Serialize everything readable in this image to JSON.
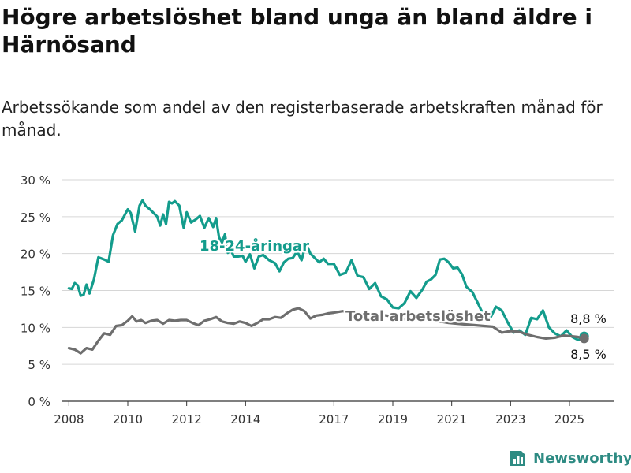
{
  "title": "Högre arbetslöshet bland unga än bland äldre i Härnösand",
  "subtitle": "Arbetssökande som andel av den registerbaserade arbetskraften månad för månad.",
  "brand": {
    "name": "Newsworthy",
    "icon": "newsworthy-logo-icon"
  },
  "colors": {
    "youth": "#139c8c",
    "total": "#6e6e6e",
    "grid": "#d6d6d6",
    "axis": "#333333"
  },
  "chart_data": {
    "type": "line",
    "ylim": [
      0,
      30
    ],
    "yticks": [
      0,
      5,
      10,
      15,
      20,
      25,
      30
    ],
    "ytick_labels": [
      "0 %",
      "5 %",
      "10 %",
      "15 %",
      "20 %",
      "25 %",
      "30 %"
    ],
    "xlim": [
      2007.75,
      2026.5
    ],
    "xticks": [
      2008,
      2010,
      2012,
      2014,
      2017,
      2019,
      2021,
      2023,
      2025
    ],
    "xtick_labels": [
      "2008",
      "2010",
      "2012",
      "2014",
      "2017",
      "2019",
      "2021",
      "2023",
      "2025"
    ],
    "grid": true,
    "series": [
      {
        "name": "18-24-åringar",
        "color": "#139c8c",
        "x": [
          2008.0,
          2008.1,
          2008.2,
          2008.3,
          2008.4,
          2008.5,
          2008.6,
          2008.7,
          2008.85,
          2009.0,
          2009.2,
          2009.35,
          2009.5,
          2009.65,
          2009.8,
          2010.0,
          2010.1,
          2010.25,
          2010.4,
          2010.5,
          2010.6,
          2010.75,
          2011.0,
          2011.1,
          2011.2,
          2011.3,
          2011.4,
          2011.5,
          2011.6,
          2011.75,
          2011.9,
          2012.0,
          2012.15,
          2012.3,
          2012.45,
          2012.6,
          2012.75,
          2012.9,
          2013.0,
          2013.1,
          2013.2,
          2013.3,
          2013.4,
          2013.5,
          2013.6,
          2013.75,
          2013.9,
          2014.0,
          2014.15,
          2014.3,
          2014.45,
          2014.6,
          2014.8,
          2015.0,
          2015.15,
          2015.3,
          2015.45,
          2015.6,
          2015.75,
          2015.9,
          2016.05,
          2016.2,
          2016.35,
          2016.5,
          2016.65,
          2016.8,
          2017.0,
          2017.2,
          2017.4,
          2017.6,
          2017.8,
          2018.0,
          2018.2,
          2018.4,
          2018.6,
          2018.8,
          2019.0,
          2019.2,
          2019.4,
          2019.6,
          2019.8,
          2020.0,
          2020.15,
          2020.3,
          2020.45,
          2020.6,
          2020.75,
          2020.9,
          2021.05,
          2021.2,
          2021.35,
          2021.5,
          2021.7,
          2021.9,
          2022.1,
          2022.3,
          2022.5,
          2022.7,
          2022.9,
          2023.1,
          2023.3,
          2023.5,
          2023.7,
          2023.9,
          2024.1,
          2024.3,
          2024.5,
          2024.7,
          2024.9,
          2025.1,
          2025.3,
          2025.5
        ],
        "values": [
          15.3,
          15.2,
          16.0,
          15.7,
          14.3,
          14.4,
          15.8,
          14.6,
          16.5,
          19.5,
          19.2,
          18.9,
          22.5,
          24.0,
          24.5,
          26.0,
          25.5,
          23.0,
          26.5,
          27.2,
          26.5,
          26.0,
          25.0,
          23.8,
          25.3,
          24.0,
          27.0,
          26.8,
          27.1,
          26.5,
          23.5,
          25.6,
          24.2,
          24.6,
          25.1,
          23.5,
          24.8,
          23.6,
          24.8,
          22.2,
          21.5,
          22.6,
          20.1,
          20.5,
          19.6,
          19.6,
          19.7,
          18.9,
          19.9,
          18.0,
          19.6,
          19.8,
          19.1,
          18.7,
          17.6,
          18.8,
          19.3,
          19.4,
          20.3,
          19.1,
          21.4,
          20.0,
          19.4,
          18.8,
          19.3,
          18.6,
          18.6,
          17.1,
          17.4,
          19.1,
          17.0,
          16.8,
          15.2,
          16.0,
          14.2,
          13.8,
          12.7,
          12.6,
          13.3,
          14.9,
          14.0,
          15.1,
          16.2,
          16.5,
          17.1,
          19.2,
          19.3,
          18.8,
          18.0,
          18.1,
          17.2,
          15.5,
          14.8,
          13.2,
          11.5,
          11.2,
          12.8,
          12.3,
          10.7,
          9.3,
          9.6,
          9.0,
          11.3,
          11.1,
          12.3,
          10.0,
          9.2,
          8.8,
          9.6,
          8.7,
          8.3,
          8.8
        ]
      },
      {
        "name": "Total arbetslöshet",
        "color": "#6e6e6e",
        "x": [
          2008.0,
          2008.2,
          2008.4,
          2008.6,
          2008.8,
          2009.0,
          2009.2,
          2009.4,
          2009.6,
          2009.8,
          2010.0,
          2010.15,
          2010.3,
          2010.45,
          2010.6,
          2010.8,
          2011.0,
          2011.2,
          2011.4,
          2011.6,
          2011.8,
          2012.0,
          2012.2,
          2012.4,
          2012.6,
          2012.8,
          2013.0,
          2013.2,
          2013.4,
          2013.6,
          2013.8,
          2014.0,
          2014.2,
          2014.4,
          2014.6,
          2014.8,
          2015.0,
          2015.2,
          2015.4,
          2015.6,
          2015.8,
          2016.0,
          2016.2,
          2016.4,
          2016.6,
          2016.8,
          2017.0,
          2017.3,
          2017.6,
          2017.9,
          2018.2,
          2018.5,
          2018.8,
          2019.1,
          2019.4,
          2019.7,
          2020.0,
          2020.3,
          2020.6,
          2020.9,
          2021.2,
          2021.5,
          2021.8,
          2022.1,
          2022.4,
          2022.7,
          2023.0,
          2023.3,
          2023.6,
          2023.9,
          2024.2,
          2024.5,
          2024.8,
          2025.1,
          2025.3,
          2025.5
        ],
        "values": [
          7.2,
          7.0,
          6.5,
          7.2,
          7.0,
          8.2,
          9.2,
          9.0,
          10.2,
          10.3,
          10.9,
          11.5,
          10.8,
          11.0,
          10.6,
          10.9,
          11.0,
          10.5,
          11.0,
          10.9,
          11.0,
          11.0,
          10.6,
          10.3,
          10.9,
          11.1,
          11.4,
          10.8,
          10.6,
          10.5,
          10.8,
          10.6,
          10.2,
          10.6,
          11.1,
          11.1,
          11.4,
          11.3,
          11.9,
          12.4,
          12.6,
          12.2,
          11.2,
          11.6,
          11.7,
          11.9,
          12.0,
          12.2,
          11.9,
          11.7,
          11.9,
          11.7,
          11.6,
          11.3,
          11.1,
          11.0,
          11.2,
          11.0,
          10.8,
          10.6,
          10.5,
          10.4,
          10.3,
          10.2,
          10.1,
          9.3,
          9.5,
          9.4,
          9.0,
          8.7,
          8.5,
          8.6,
          8.9,
          8.8,
          8.7,
          8.5
        ]
      }
    ],
    "annotations": [
      {
        "name": "youth-series-label",
        "text": "18-24-åringar",
        "series": 0
      },
      {
        "name": "total-series-label",
        "text": "Total arbetslöshet",
        "series": 1
      },
      {
        "name": "youth-last-value-label",
        "text": "8,8 %",
        "series": 0
      },
      {
        "name": "total-last-value-label",
        "text": "8,5 %",
        "series": 1
      }
    ]
  }
}
